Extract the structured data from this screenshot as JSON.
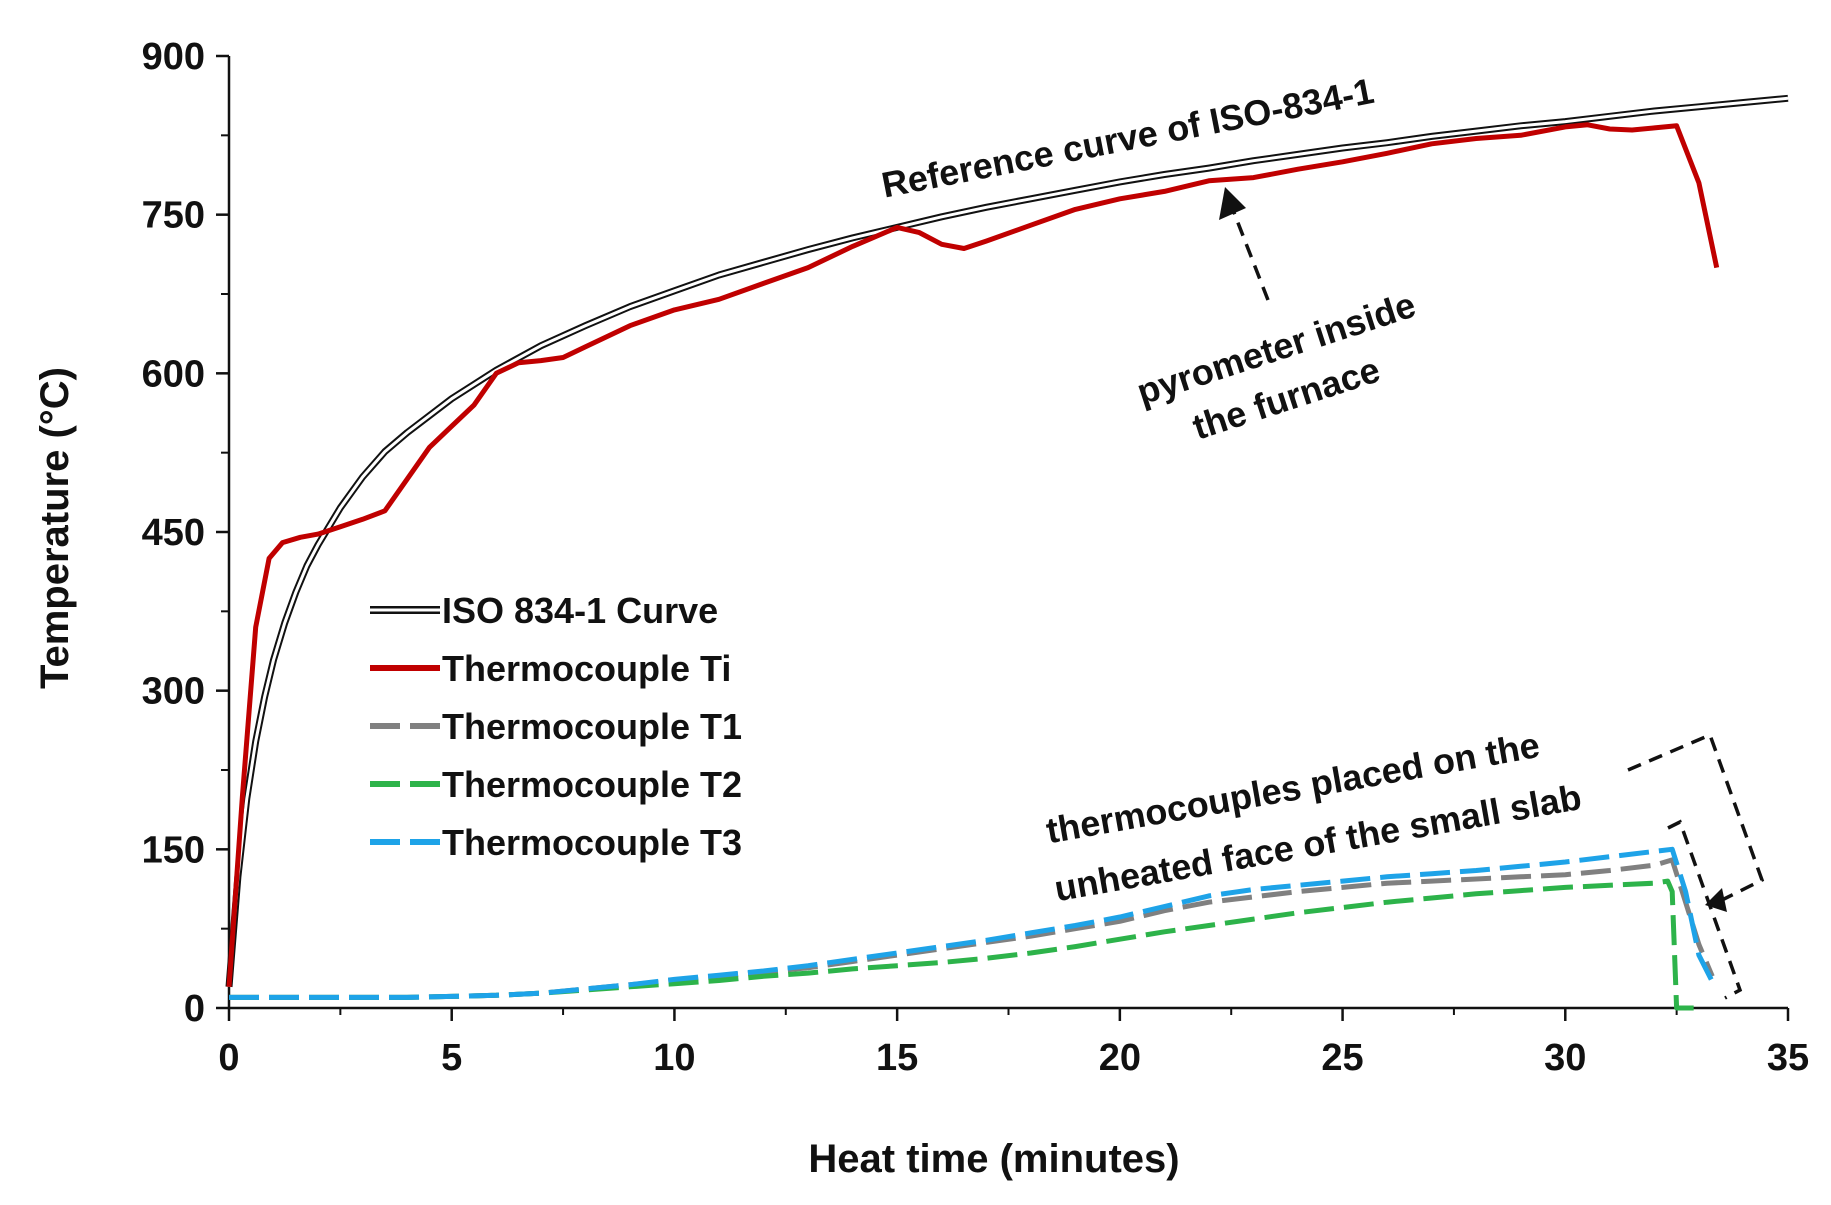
{
  "chart_data": {
    "type": "line",
    "title": "",
    "xlabel": "Heat time (minutes)",
    "ylabel": "Temperature (°C)",
    "xlim": [
      0,
      35
    ],
    "ylim": [
      0,
      900
    ],
    "xticks": [
      0,
      5,
      10,
      15,
      20,
      25,
      30,
      35
    ],
    "yticks": [
      0,
      150,
      300,
      450,
      600,
      750,
      900
    ],
    "grid": false,
    "legend_position": "left-middle",
    "series": [
      {
        "name": "ISO 834-1 Curve",
        "style": "double-line",
        "color": "#111111",
        "x": [
          0,
          0.2,
          0.4,
          0.6,
          0.8,
          1,
          1.25,
          1.5,
          1.75,
          2,
          2.5,
          3,
          3.5,
          4,
          5,
          6,
          7,
          8,
          9,
          10,
          11,
          12,
          13,
          14,
          15,
          16,
          17,
          18,
          19,
          20,
          21,
          22,
          23,
          24,
          25,
          26,
          27,
          28,
          29,
          30,
          31,
          32,
          33,
          34,
          35
        ],
        "values": [
          20,
          124,
          198,
          252,
          294,
          329,
          364,
          393,
          418,
          438,
          473,
          502,
          526,
          544,
          576,
          603,
          626,
          645,
          663,
          678,
          693,
          705,
          717,
          728,
          738,
          748,
          757,
          765,
          773,
          781,
          788,
          794,
          801,
          807,
          813,
          818,
          824,
          829,
          834,
          838,
          843,
          848,
          852,
          856,
          860
        ]
      },
      {
        "name": "Thermocouple Ti",
        "style": "solid",
        "color": "#c00000",
        "x": [
          0,
          0.3,
          0.6,
          0.9,
          1.2,
          1.6,
          2,
          2.5,
          3,
          3.5,
          4,
          4.5,
          5,
          5.5,
          6,
          6.5,
          7,
          7.5,
          8,
          9,
          10,
          11,
          12,
          13,
          14,
          15,
          15.5,
          16,
          16.5,
          17,
          18,
          19,
          20,
          21,
          22,
          23,
          24,
          25,
          26,
          27,
          28,
          29,
          30,
          30.5,
          31,
          31.5,
          32,
          32.5,
          33,
          33.4
        ],
        "values": [
          20,
          200,
          360,
          425,
          440,
          445,
          448,
          455,
          462,
          470,
          500,
          530,
          550,
          570,
          600,
          610,
          612,
          615,
          625,
          645,
          660,
          670,
          685,
          700,
          720,
          738,
          733,
          722,
          718,
          725,
          740,
          755,
          765,
          772,
          782,
          785,
          793,
          800,
          808,
          817,
          822,
          825,
          833,
          835,
          831,
          830,
          832,
          834,
          780,
          700
        ]
      },
      {
        "name": "Thermocouple T1",
        "style": "dashed",
        "color": "#808080",
        "x": [
          0,
          1,
          2,
          3,
          4,
          5,
          6,
          7,
          8,
          9,
          10,
          11,
          12,
          13,
          14,
          15,
          16,
          17,
          18,
          19,
          20,
          21,
          22,
          23,
          24,
          25,
          26,
          27,
          28,
          29,
          30,
          31,
          32,
          32.4,
          32.7,
          33,
          33.3
        ],
        "values": [
          10,
          10,
          10,
          10,
          10,
          11,
          12,
          14,
          18,
          22,
          26,
          30,
          34,
          38,
          44,
          50,
          56,
          62,
          68,
          75,
          82,
          92,
          100,
          105,
          110,
          114,
          118,
          120,
          122,
          124,
          126,
          130,
          135,
          140,
          100,
          60,
          30
        ]
      },
      {
        "name": "Thermocouple T2",
        "style": "dashed",
        "color": "#2db34a",
        "x": [
          0,
          1,
          2,
          3,
          4,
          5,
          6,
          7,
          8,
          9,
          10,
          11,
          12,
          13,
          14,
          15,
          16,
          17,
          18,
          19,
          20,
          21,
          22,
          23,
          24,
          25,
          26,
          27,
          28,
          29,
          30,
          31,
          32,
          32.3,
          32.4,
          32.5,
          33
        ],
        "values": [
          10,
          10,
          10,
          10,
          10,
          11,
          12,
          14,
          17,
          20,
          23,
          26,
          30,
          33,
          37,
          40,
          43,
          47,
          52,
          58,
          65,
          72,
          78,
          84,
          90,
          95,
          100,
          104,
          108,
          111,
          114,
          116,
          118,
          120,
          110,
          0,
          0
        ]
      },
      {
        "name": "Thermocouple T3",
        "style": "dashed",
        "color": "#1ea3e8",
        "x": [
          0,
          1,
          2,
          3,
          4,
          5,
          6,
          7,
          8,
          9,
          10,
          11,
          12,
          13,
          14,
          15,
          16,
          17,
          18,
          19,
          20,
          21,
          22,
          23,
          24,
          25,
          26,
          27,
          28,
          29,
          30,
          31,
          32,
          32.4,
          32.7,
          33,
          33.3
        ],
        "values": [
          10,
          10,
          10,
          10,
          10,
          11,
          12,
          14,
          18,
          22,
          27,
          31,
          35,
          40,
          46,
          52,
          58,
          64,
          71,
          78,
          86,
          96,
          106,
          112,
          116,
          120,
          124,
          127,
          130,
          134,
          138,
          143,
          148,
          150,
          110,
          50,
          25
        ]
      }
    ],
    "annotations": [
      {
        "text": "Reference curve of ISO-834-1"
      },
      {
        "text": "pyrometer inside"
      },
      {
        "text": "the furnace"
      },
      {
        "text": "thermocouples placed on the"
      },
      {
        "text": "unheated face of the small slab"
      }
    ]
  }
}
